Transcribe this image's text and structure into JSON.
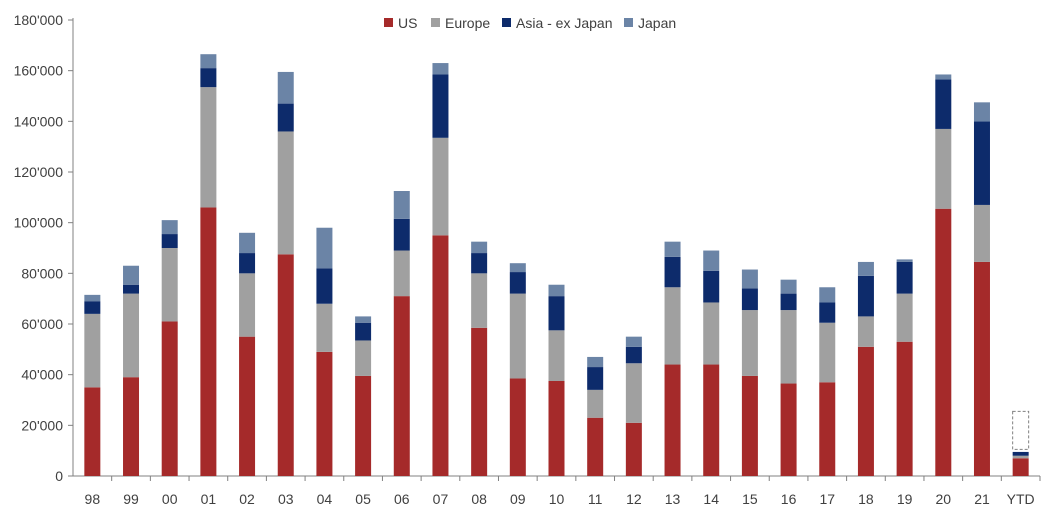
{
  "chart_data": {
    "type": "bar",
    "stacked": true,
    "title": "",
    "xlabel": "",
    "ylabel": "",
    "ylim": [
      0,
      180000
    ],
    "yticks": [
      0,
      20000,
      40000,
      60000,
      80000,
      100000,
      120000,
      140000,
      160000,
      180000
    ],
    "ytick_labels": [
      "0",
      "20'000",
      "40'000",
      "60'000",
      "80'000",
      "100'000",
      "120'000",
      "140'000",
      "160'000",
      "180'000"
    ],
    "grid": false,
    "legend_position": "top-center",
    "categories": [
      "98",
      "99",
      "00",
      "01",
      "02",
      "03",
      "04",
      "05",
      "06",
      "07",
      "08",
      "09",
      "10",
      "11",
      "12",
      "13",
      "14",
      "15",
      "16",
      "17",
      "18",
      "19",
      "20",
      "21",
      "YTD"
    ],
    "series": [
      {
        "name": "US",
        "color": "#a52a2a",
        "values": [
          35000,
          39000,
          61000,
          106000,
          55000,
          87500,
          49000,
          39500,
          71000,
          95000,
          58500,
          38500,
          37500,
          23000,
          21000,
          44000,
          44000,
          39500,
          36500,
          37000,
          51000,
          53000,
          105500,
          84500,
          7000
        ]
      },
      {
        "name": "Europe",
        "color": "#a0a0a0",
        "values": [
          29000,
          33000,
          29000,
          47500,
          25000,
          48500,
          19000,
          14000,
          18000,
          38500,
          21500,
          33500,
          20000,
          11000,
          23500,
          30500,
          24500,
          26000,
          29000,
          23500,
          12000,
          19000,
          31500,
          22500,
          1000
        ]
      },
      {
        "name": "Asia - ex Japan",
        "color": "#0d2b6b",
        "values": [
          5000,
          3500,
          5500,
          7500,
          8000,
          11000,
          14000,
          7000,
          12500,
          25000,
          8000,
          8500,
          13500,
          9000,
          6500,
          12000,
          12500,
          8500,
          6500,
          8000,
          16000,
          12500,
          19500,
          33000,
          1500
        ]
      },
      {
        "name": "Japan",
        "color": "#6b84a6",
        "values": [
          2500,
          7500,
          5500,
          5500,
          8000,
          12500,
          16000,
          2500,
          11000,
          4500,
          4500,
          3500,
          4500,
          4000,
          4000,
          6000,
          8000,
          7500,
          5500,
          6000,
          5500,
          1000,
          2000,
          7500,
          0
        ]
      }
    ],
    "annotations": [
      {
        "type": "dashed-box",
        "category": "YTD",
        "y_range": [
          10500,
          25500
        ]
      }
    ]
  }
}
